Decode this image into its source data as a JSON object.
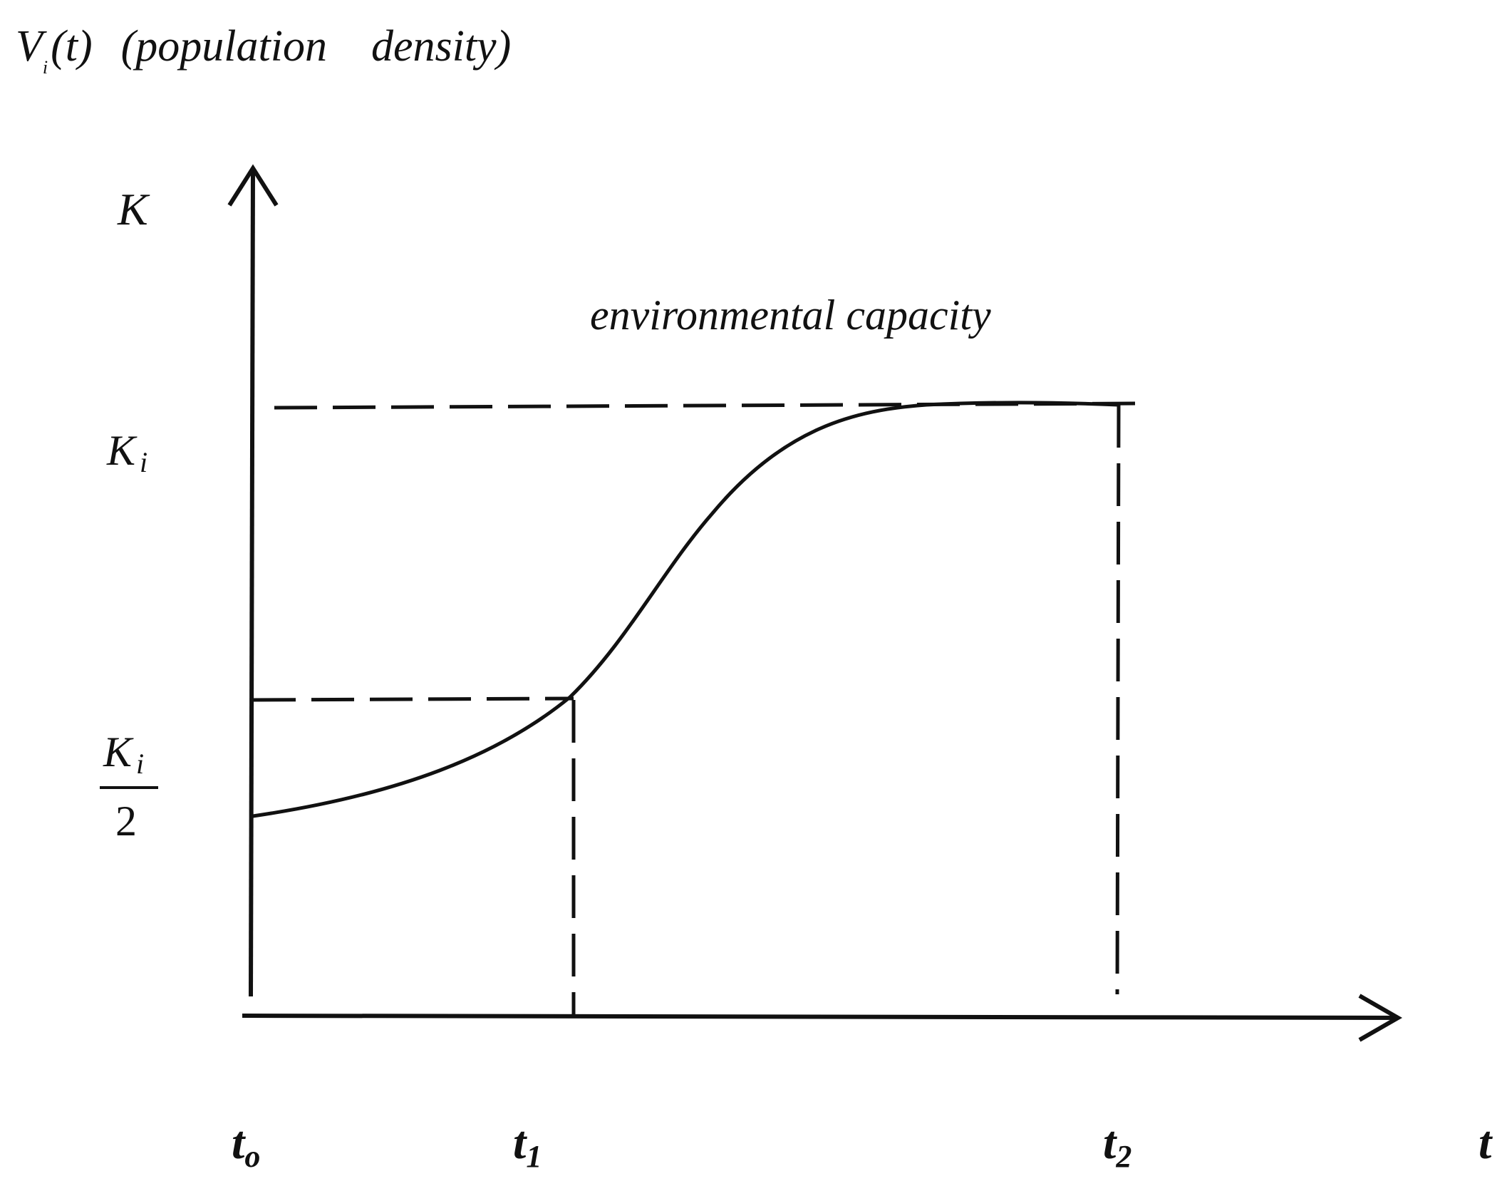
{
  "diagram": {
    "y_axis_title": {
      "symbol": "V",
      "subscript": "i",
      "argument": "(t)",
      "description": "(population    density)"
    },
    "y_axis_top_label": "K",
    "capacity_caption": "environmental capacity",
    "y_tick_capacity": {
      "base": "K",
      "subscript": "i"
    },
    "y_tick_half": {
      "numerator_base": "K",
      "numerator_subscript": "i",
      "denominator": "2"
    },
    "x_axis_label": "t",
    "x_ticks": [
      {
        "base": "t",
        "subscript": "o"
      },
      {
        "base": "t",
        "subscript": "1"
      },
      {
        "base": "t",
        "subscript": "2"
      }
    ],
    "colors": {
      "ink": "#111111",
      "background": "#ffffff"
    }
  }
}
